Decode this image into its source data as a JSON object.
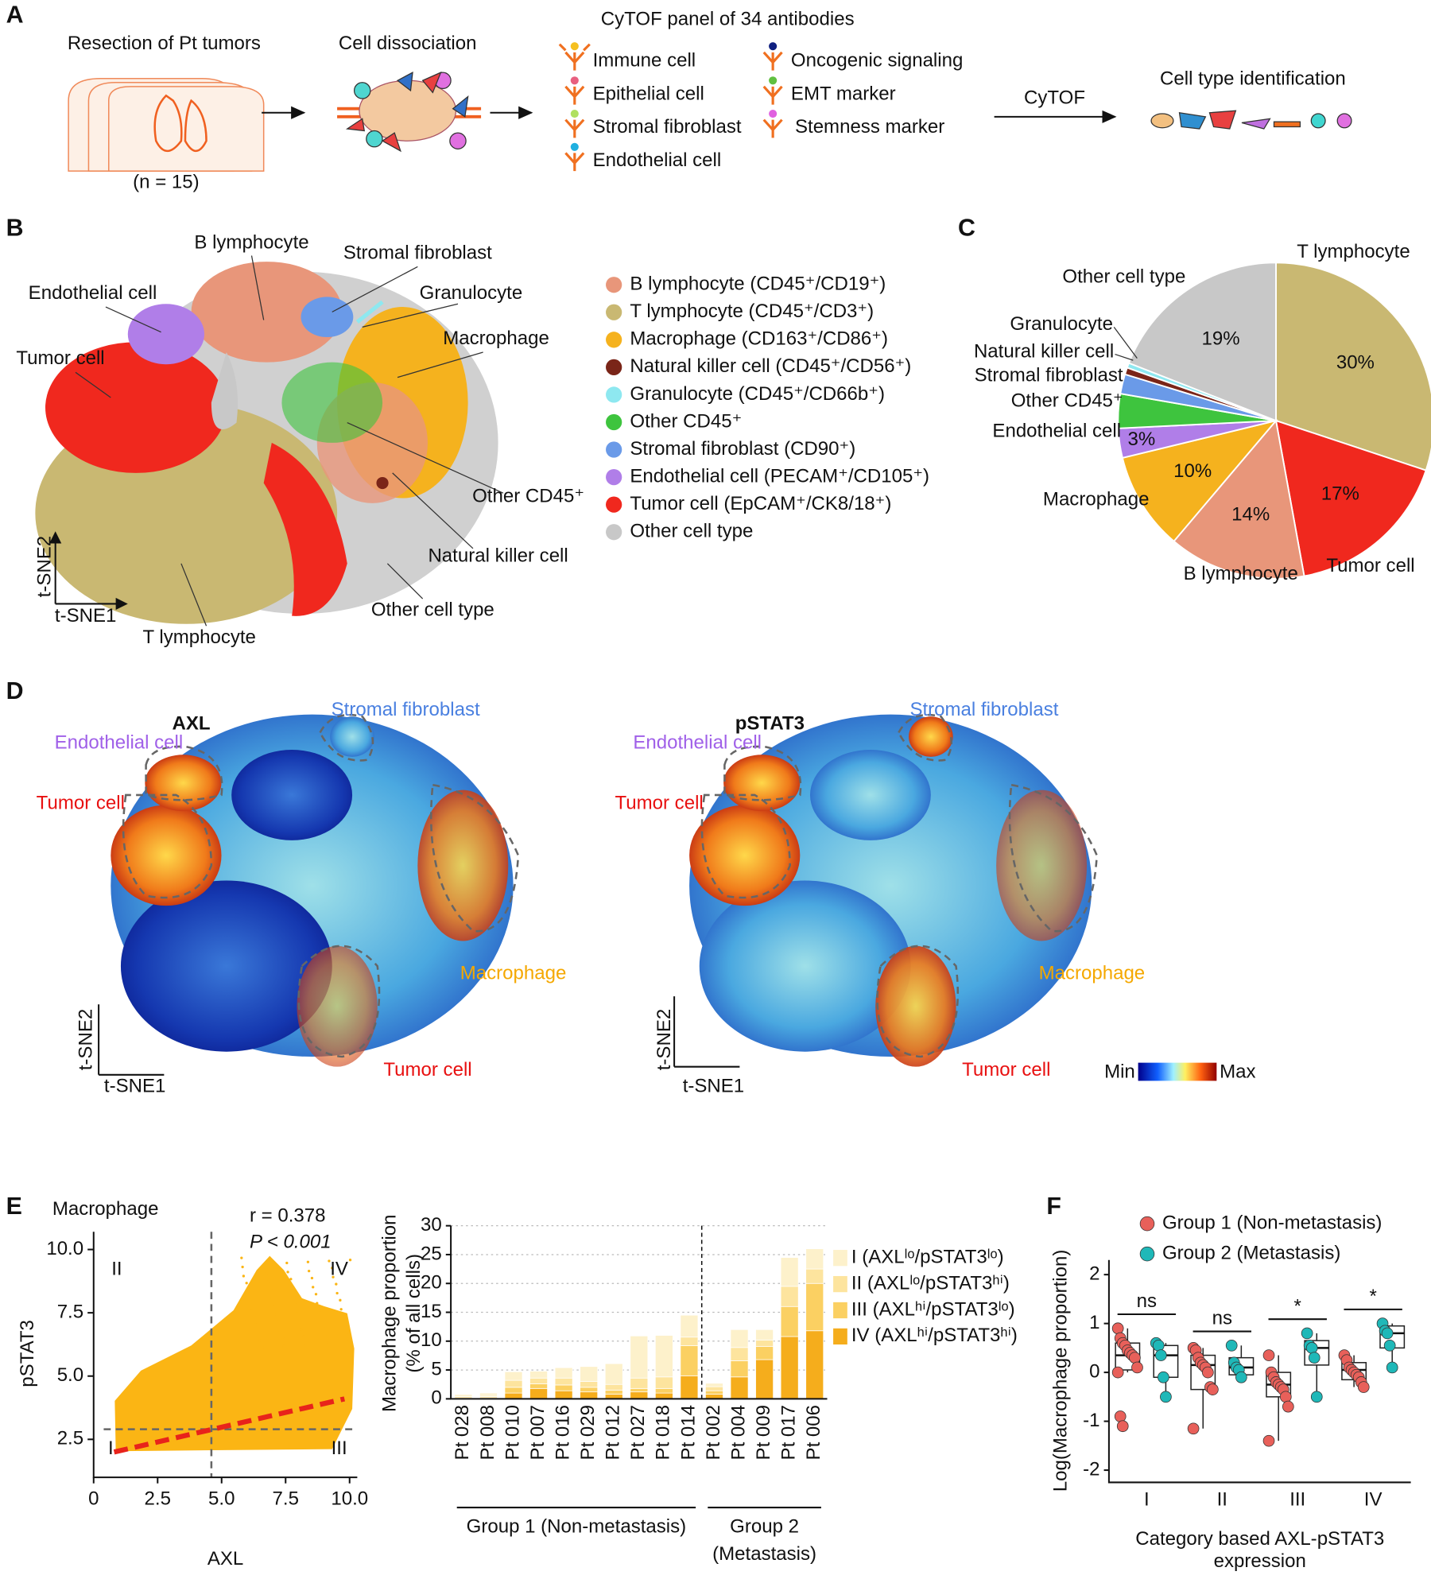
{
  "panel_labels": [
    "A",
    "B",
    "C",
    "D",
    "E",
    "F"
  ],
  "panel_a": {
    "steps": [
      "Resection of Pt tumors",
      "Cell dissociation",
      "CyTOF panel of 34 antibodies",
      "Cell type identification"
    ],
    "n_label": "(n = 15)",
    "arrow_label": "CyTOF",
    "antibodies": [
      "Immune cell",
      "Epithelial cell",
      "Stromal fibroblast",
      "Endothelial cell",
      "Oncogenic signaling",
      "EMT marker",
      "Stemness marker"
    ]
  },
  "panel_b": {
    "cluster_labels": [
      "B lymphocyte",
      "Stromal fibroblast",
      "Endothelial cell",
      "Granulocyte",
      "Tumor cell",
      "Macrophage",
      "Other CD45⁺",
      "Natural killer cell",
      "Other cell type",
      "T lymphocyte"
    ],
    "axis_labels": [
      "t-SNE2",
      "t-SNE1"
    ],
    "legend": [
      {
        "name": "B lymphocyte (CD45⁺/CD19⁺)",
        "color": "#e8967a"
      },
      {
        "name": "T lymphocyte (CD45⁺/CD3⁺)",
        "color": "#c9b872"
      },
      {
        "name": "Macrophage (CD163⁺/CD86⁺)",
        "color": "#f5b21e"
      },
      {
        "name": "Natural killer cell (CD45⁺/CD56⁺)",
        "color": "#7a2518"
      },
      {
        "name": "Granulocyte (CD45⁺/CD66b⁺)",
        "color": "#8ee8f0"
      },
      {
        "name": "Other CD45⁺",
        "color": "#3ec43e"
      },
      {
        "name": "Stromal fibroblast (CD90⁺)",
        "color": "#6a9ae8"
      },
      {
        "name": "Endothelial cell (PECAM⁺/CD105⁺)",
        "color": "#b07ee8"
      },
      {
        "name": "Tumor cell (EpCAM⁺/CK8/18⁺)",
        "color": "#f0281e"
      },
      {
        "name": "Other cell type",
        "color": "#c8c8c8"
      }
    ]
  },
  "panel_d": {
    "maps": [
      {
        "title": "AXL",
        "labels": [
          "Stromal fibroblast",
          "Endothelial cell",
          "Tumor cell",
          "Macrophage",
          "Tumor cell"
        ],
        "axis_labels": [
          "t-SNE2",
          "t-SNE1"
        ]
      },
      {
        "title": "pSTAT3",
        "labels": [
          "Stromal fibroblast",
          "Endothelial cell",
          "Tumor cell",
          "Macrophage",
          "Tumor cell"
        ],
        "axis_labels": [
          "t-SNE2",
          "t-SNE1"
        ]
      }
    ],
    "colorbar": [
      "Min",
      "Max"
    ]
  },
  "chart_data": [
    {
      "type": "pie",
      "categories": [
        "T lymphocyte",
        "Tumor cell",
        "B lymphocyte",
        "Macrophage",
        "Endothelial cell",
        "Other CD45⁺",
        "Stromal fibroblast",
        "Natural killer cell",
        "Granulocyte",
        "Other cell type"
      ],
      "values": [
        30,
        17,
        14,
        10,
        3,
        3.5,
        2,
        0.7,
        0.5,
        19
      ],
      "value_labels": [
        "30%",
        "17%",
        "14%",
        "10%",
        "3%",
        null,
        null,
        null,
        null,
        "19%"
      ],
      "colors": [
        "#c9b872",
        "#f0281e",
        "#e8967a",
        "#f5b21e",
        "#b07ee8",
        "#3ec43e",
        "#6a9ae8",
        "#7a2518",
        "#8ee8f0",
        "#c8c8c8"
      ]
    },
    {
      "type": "scatter",
      "title": "Macrophage",
      "annotations": [
        "r = 0.378",
        "P < 0.001"
      ],
      "quadrant_labels": [
        "II",
        "IV",
        "I",
        "III"
      ],
      "xlabel": "AXL",
      "ylabel": "pSTAT3",
      "xlim": [
        0,
        10.3
      ],
      "ylim": [
        1,
        10.7
      ],
      "xticks": [
        0,
        2.5,
        {
          "value": 5,
          "label": "5.0"
        },
        7.5,
        {
          "value": 10,
          "label": "10.0"
        }
      ],
      "yticks": [
        2.5,
        {
          "value": 5,
          "label": "5.0"
        },
        7.5,
        {
          "value": 10,
          "label": "10.0"
        }
      ],
      "color": "#fbb514",
      "trend_line": {
        "x": [
          0.8,
          9.8
        ],
        "y": [
          2.0,
          4.1
        ],
        "color": "#e8231b"
      },
      "thresholds": {
        "x": 4.6,
        "y": 2.9
      }
    },
    {
      "type": "bar",
      "stacked": true,
      "ylabel": [
        "Macrophage proportion",
        "(% of all cells)"
      ],
      "categories": [
        "Pt 028",
        "Pt 008",
        "Pt 010",
        "Pt 007",
        "Pt 016",
        "Pt 029",
        "Pt 012",
        "Pt 027",
        "Pt 018",
        "Pt 014",
        "Pt 002",
        "Pt 004",
        "Pt 009",
        "Pt 017",
        "Pt 006"
      ],
      "groups": [
        {
          "label": [
            "Group 1 (Non-metastasis)"
          ],
          "size": 10
        },
        {
          "label": [
            "Group 2",
            "(Metastasis)"
          ],
          "size": 5
        }
      ],
      "series": [
        {
          "name": "I (AXLˡᵒ/pSTAT3ˡᵒ)",
          "color": "#fdf1cb",
          "values": [
            0.2,
            0.4,
            1.5,
            1.2,
            1.8,
            2.6,
            3.6,
            7.3,
            7.2,
            3.8,
            0.6,
            3.1,
            1.8,
            5.0,
            3.5
          ]
        },
        {
          "name": "II (AXLˡᵒ/pSTAT3ʰⁱ)",
          "color": "#fde49e",
          "values": [
            0.2,
            0.2,
            1.2,
            1.0,
            1.2,
            1.0,
            1.0,
            1.8,
            2.0,
            1.5,
            0.7,
            2.3,
            1.1,
            3.5,
            2.5
          ]
        },
        {
          "name": "III (AXLʰⁱ/pSTAT3ˡᵒ)",
          "color": "#fbd062",
          "values": [
            0.2,
            0.2,
            1.0,
            0.8,
            1.0,
            0.8,
            0.7,
            0.6,
            0.8,
            5.2,
            0.6,
            2.8,
            2.3,
            5.2,
            8.2
          ]
        },
        {
          "name": "IV (AXLʰⁱ/pSTAT3ʰⁱ)",
          "color": "#f5ad1c",
          "values": [
            0.2,
            0.2,
            1.0,
            1.8,
            1.4,
            1.2,
            0.8,
            1.2,
            1.0,
            4.0,
            0.8,
            3.8,
            6.8,
            10.8,
            11.8
          ]
        }
      ],
      "ylim": [
        0,
        30
      ],
      "yticks": [
        0,
        5,
        10,
        15,
        20,
        25,
        30
      ],
      "grid": true
    },
    {
      "type": "box",
      "ylabel": "Log(Macrophage proportion)",
      "xlabel": [
        "Category based AXL-pSTAT3",
        "expression"
      ],
      "categories": [
        "I",
        "II",
        "III",
        "IV"
      ],
      "significance": [
        "ns",
        "ns",
        "*",
        "*"
      ],
      "ylim": [
        -2.25,
        2.3
      ],
      "yticks": [
        -2,
        -1,
        0,
        1,
        2
      ],
      "series": [
        {
          "name": "Group 1 (Non-metastasis)",
          "color": "#e8605a",
          "boxes": [
            {
              "min": 0.0,
              "q1": 0.05,
              "median": 0.35,
              "q3": 0.6,
              "max": 0.9
            },
            {
              "min": -1.15,
              "q1": -0.35,
              "median": 0.15,
              "q3": 0.35,
              "max": 0.5
            },
            {
              "min": -1.4,
              "q1": -0.5,
              "median": -0.25,
              "q3": 0.0,
              "max": 0.35
            },
            {
              "min": -0.3,
              "q1": -0.15,
              "median": 0.05,
              "q3": 0.2,
              "max": 0.35
            }
          ],
          "points": [
            [
              0.9,
              0.7,
              0.6,
              0.55,
              0.45,
              0.4,
              0.35,
              0.3,
              0.1,
              0.0,
              -0.9,
              -1.1
            ],
            [
              0.5,
              0.45,
              0.3,
              0.2,
              0.15,
              0.1,
              0.0,
              -0.3,
              -0.35,
              -1.15
            ],
            [
              0.35,
              0.0,
              -0.1,
              -0.2,
              -0.25,
              -0.3,
              -0.35,
              -0.5,
              -0.7,
              -1.4
            ],
            [
              0.35,
              0.25,
              0.1,
              0.05,
              0.0,
              -0.05,
              -0.1,
              -0.2,
              -0.3
            ]
          ]
        },
        {
          "name": "Group 2 (Metastasis)",
          "color": "#1fb8b8",
          "boxes": [
            {
              "min": -0.5,
              "q1": -0.1,
              "median": 0.35,
              "q3": 0.55,
              "max": 0.6
            },
            {
              "min": -0.1,
              "q1": -0.05,
              "median": 0.1,
              "q3": 0.3,
              "max": 0.55
            },
            {
              "min": -0.5,
              "q1": 0.15,
              "median": 0.5,
              "q3": 0.65,
              "max": 0.8
            },
            {
              "min": 0.1,
              "q1": 0.5,
              "median": 0.8,
              "q3": 0.95,
              "max": 1.0
            }
          ],
          "points": [
            [
              0.6,
              0.55,
              0.35,
              -0.1,
              -0.5
            ],
            [
              0.55,
              0.2,
              0.1,
              0.05,
              -0.1
            ],
            [
              0.8,
              0.55,
              0.5,
              0.3,
              -0.5
            ],
            [
              1.0,
              0.85,
              0.8,
              0.55,
              0.1
            ]
          ]
        }
      ]
    }
  ]
}
